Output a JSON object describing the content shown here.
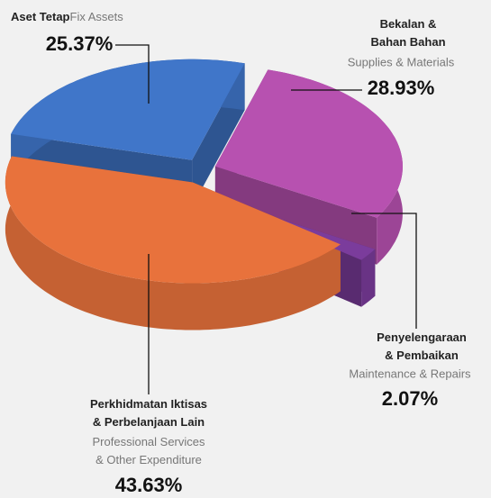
{
  "chart_data": {
    "type": "pie",
    "categories": [
      "Aset Tetap",
      "Bekalan &\nBahan Bahan",
      "Penyelengaraan\n& Pembaikan",
      "Perkhidmatan Iktisas\n& Perbelanjaan Lain"
    ],
    "subcategories": [
      "Fix Assets",
      "Supplies & Materials",
      "Maintenance & Repairs",
      "Professional Services\n& Other Expenditure"
    ],
    "values": [
      25.37,
      28.93,
      2.07,
      43.63
    ],
    "value_labels": [
      "25.37%",
      "28.93%",
      "2.07%",
      "43.63%"
    ],
    "colors": [
      "#4076c9",
      "#b751b0",
      "#7b3c9c",
      "#e8723c"
    ]
  }
}
